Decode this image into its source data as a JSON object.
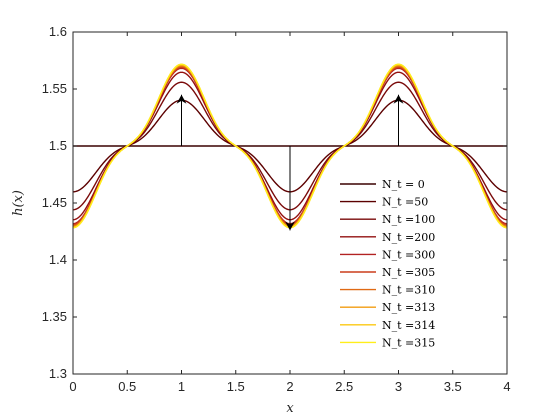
{
  "chart_data": {
    "type": "line",
    "title": "",
    "xlabel": "x",
    "ylabel": "h(x)",
    "xlim": [
      0,
      4
    ],
    "ylim": [
      1.3,
      1.6
    ],
    "xticks": [
      "0",
      "0.5",
      "1",
      "1.5",
      "2",
      "2.5",
      "3",
      "3.5",
      "4"
    ],
    "yticks": [
      "1.3",
      "1.35",
      "1.4",
      "1.45",
      "1.5",
      "1.55",
      "1.6"
    ],
    "grid": false,
    "legend_position": "lower-right",
    "series": [
      {
        "name": "N_t = 0",
        "color": "#3a0000",
        "amplitude": 0.0,
        "x": [
          0,
          4
        ],
        "y": [
          1.5,
          1.5
        ]
      },
      {
        "name": "N_t =50",
        "color": "#5c0000",
        "amplitude": 0.046,
        "peak": 1.522,
        "trough": 1.455
      },
      {
        "name": "N_t =100",
        "color": "#7a0a0a",
        "amplitude": 0.064,
        "peak": 1.538,
        "trough": 1.437
      },
      {
        "name": "N_t =200",
        "color": "#931010",
        "amplitude": 0.074,
        "peak": 1.544,
        "trough": 1.428
      },
      {
        "name": "N_t =300",
        "color": "#b22222",
        "amplitude": 0.078,
        "peak": 1.547,
        "trough": 1.425
      },
      {
        "name": "N_t =305",
        "color": "#cc3d1c",
        "amplitude": 0.079,
        "peak": 1.548,
        "trough": 1.424
      },
      {
        "name": "N_t =310",
        "color": "#e06a14",
        "amplitude": 0.08,
        "peak": 1.549,
        "trough": 1.423
      },
      {
        "name": "N_t =313",
        "color": "#f29c10",
        "amplitude": 0.081,
        "peak": 1.55,
        "trough": 1.422
      },
      {
        "name": "N_t =314",
        "color": "#fbc812",
        "amplitude": 0.082,
        "peak": 1.551,
        "trough": 1.421
      },
      {
        "name": "N_t =315",
        "color": "#ffee1a",
        "amplitude": 0.082,
        "peak": 1.551,
        "trough": 1.421
      }
    ],
    "annotations": [
      {
        "type": "arrow",
        "x": 1,
        "from": 1.5,
        "to": 1.545
      },
      {
        "type": "arrow",
        "x": 3,
        "from": 1.5,
        "to": 1.545
      },
      {
        "type": "arrow",
        "x": 2,
        "from": 1.5,
        "to": 1.426
      }
    ]
  }
}
